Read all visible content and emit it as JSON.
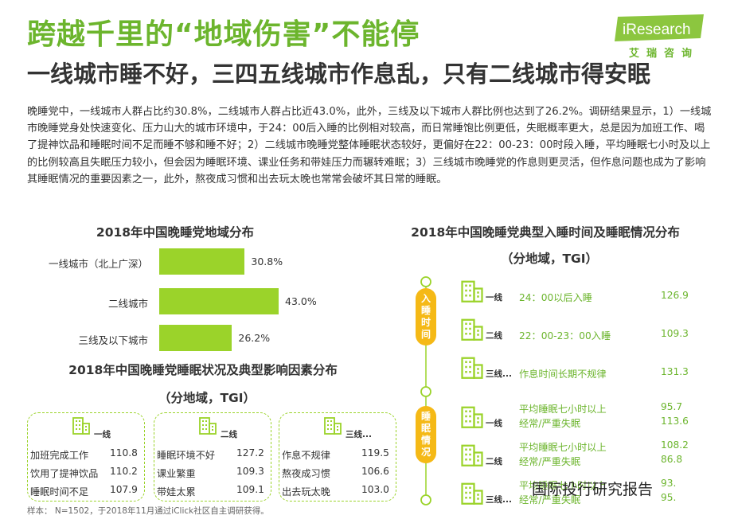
{
  "header": {
    "title": "跨越千里的“地域伤害”不能停",
    "subtitle": "一线城市睡不好，三四五线城市作息乱，只有二线城市得安眠"
  },
  "logo": {
    "brand": "iResearch",
    "sub": "艾瑞咨询",
    "color": "#8cc63f"
  },
  "paragraph": "晚睡党中，一线城市人群占比约30.8%，二线城市人群占比近43.0%，此外，三线及以下城市人群比例也达到了26.2%。调研结果显示，1）一线城市晚睡党身处快速变化、压力山大的城市环境中，于24：00后入睡的比例相对较高，而日常睡饱比例更低，失眠概率更大，总是因为加班工作、喝了提神饮品和睡眠时间不足而睡不够和睡不好；2）二线城市晚睡党整体睡眠状态较好，更偏好在22：00-23：00时段入睡，平均睡眠七小时及以上的比例较高且失眠压力较小，但会因为睡眠环境、课业任务和带娃压力而辗转难眠；3）三线城市晚睡党的作息则更灵活，但作息问题也成为了影响其睡眠情况的重要因素之一，此外，熬夜成习惯和出去玩太晚也常常会破坏其日常的睡眠。",
  "chart_data": [
    {
      "type": "bar",
      "title": "2018年中国晚睡党地域分布",
      "categories": [
        "一线城市（北上广深）",
        "二线城市",
        "三线及以下城市"
      ],
      "values": [
        30.8,
        43.0,
        26.2
      ],
      "value_labels": [
        "30.8%",
        "43.0%",
        "26.2%"
      ],
      "xlim": [
        0,
        50
      ],
      "color": "#9bd32a",
      "orientation": "horizontal"
    },
    {
      "type": "table",
      "title": "2018年中国晚睡党睡眠状况及典型影响因素分布",
      "title2": "（分地域，TGI）",
      "groups": [
        {
          "city": "一线",
          "rows": [
            {
              "label": "加班完成工作",
              "value": "110.8"
            },
            {
              "label": "饮用了提神饮品",
              "value": "110.2"
            },
            {
              "label": "睡眠时间不足",
              "value": "107.9"
            }
          ]
        },
        {
          "city": "二线",
          "rows": [
            {
              "label": "睡眠环境不好",
              "value": "127.2"
            },
            {
              "label": "课业繁重",
              "value": "109.3"
            },
            {
              "label": "带娃太累",
              "value": "109.1"
            }
          ]
        },
        {
          "city": "三线...",
          "rows": [
            {
              "label": "作息不规律",
              "value": "119.5"
            },
            {
              "label": "熬夜成习惯",
              "value": "106.6"
            },
            {
              "label": "出去玩太晚",
              "value": "103.0"
            }
          ]
        }
      ]
    },
    {
      "type": "table",
      "title": "2018年中国晚睡党典型入睡时间及睡眠情况分布",
      "title2": "（分地域，TGI）",
      "sections": [
        {
          "pill": [
            "入",
            "睡",
            "时",
            "间"
          ],
          "rows": [
            {
              "city": "一线",
              "labels": [
                "24：00以后入睡"
              ],
              "values": [
                "126.9"
              ]
            },
            {
              "city": "二线",
              "labels": [
                "22：00-23：00入睡"
              ],
              "values": [
                "109.3"
              ]
            },
            {
              "city": "三线...",
              "labels": [
                "作息时间长期不规律"
              ],
              "values": [
                "131.3"
              ]
            }
          ]
        },
        {
          "pill": [
            "睡",
            "眠",
            "情",
            "况"
          ],
          "rows": [
            {
              "city": "一线",
              "labels": [
                "平均睡眠七小时以上",
                "经常/严重失眠"
              ],
              "values": [
                "95.7",
                "113.6"
              ]
            },
            {
              "city": "二线",
              "labels": [
                "平均睡眠七小时以上",
                "经常/严重失眠"
              ],
              "values": [
                "108.2",
                "86.8"
              ]
            },
            {
              "city": "三线...",
              "labels": [
                "平均睡眠七小时以上",
                "经常/严重失眠"
              ],
              "values": [
                "93.",
                "95."
              ]
            }
          ]
        }
      ]
    }
  ],
  "footer": "样本： N=1502，于2018年11月通过iClick社区自主调研获得。",
  "watermark": "国际投行研究报告"
}
